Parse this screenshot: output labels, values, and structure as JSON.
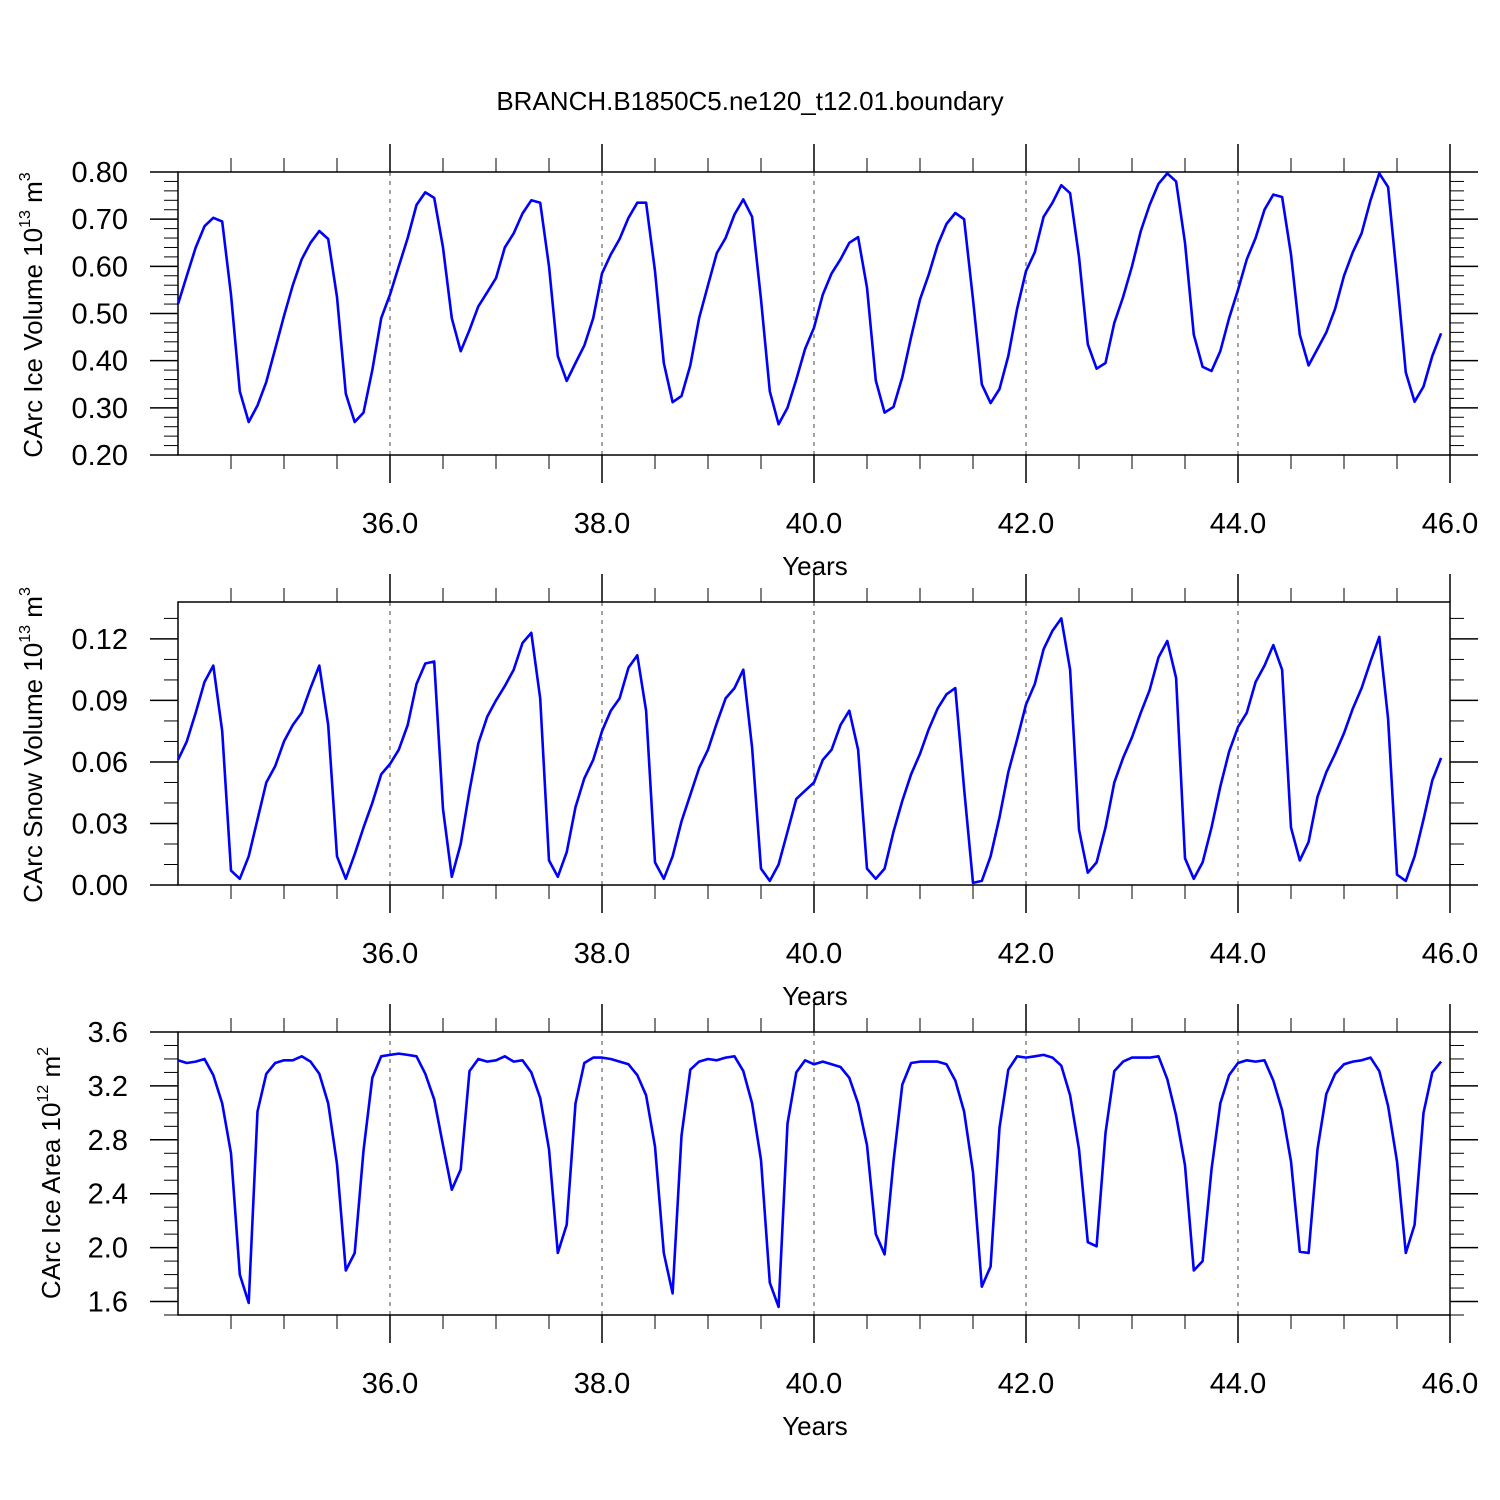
{
  "figure": {
    "title": "BRANCH.B1850C5.ne120_t12.01.boundary",
    "line_color": "#0000ff",
    "grid_color": "#666666"
  },
  "chart_data": [
    {
      "type": "line",
      "name": "ice-volume",
      "xlabel": "Years",
      "ylabel": {
        "prefix": "CArc Ice Volume 10",
        "exp": "13",
        "unit": " m",
        "unit_exp": "3"
      },
      "xlim": [
        34.0,
        46.0
      ],
      "ylim": [
        0.2,
        0.8
      ],
      "xticks": [
        36.0,
        38.0,
        40.0,
        42.0,
        44.0,
        46.0
      ],
      "xtick_labels": [
        "36.0",
        "38.0",
        "40.0",
        "42.0",
        "44.0",
        "46.0"
      ],
      "yticks": [
        0.2,
        0.3,
        0.4,
        0.5,
        0.6,
        0.7,
        0.8
      ],
      "ytick_labels": [
        "0.20",
        "0.30",
        "0.40",
        "0.50",
        "0.60",
        "0.70",
        "0.80"
      ],
      "yminor": 5,
      "grid": "vertical dashed at major x ticks",
      "x_start": 34.0,
      "x_step": 0.08333,
      "values": [
        0.52,
        0.58,
        0.64,
        0.685,
        0.703,
        0.695,
        0.54,
        0.335,
        0.27,
        0.305,
        0.355,
        0.425,
        0.495,
        0.56,
        0.615,
        0.65,
        0.675,
        0.658,
        0.535,
        0.33,
        0.27,
        0.29,
        0.38,
        0.49,
        0.54,
        0.6,
        0.66,
        0.73,
        0.757,
        0.745,
        0.64,
        0.49,
        0.42,
        0.465,
        0.515,
        0.545,
        0.575,
        0.64,
        0.67,
        0.712,
        0.74,
        0.735,
        0.6,
        0.41,
        0.357,
        0.395,
        0.432,
        0.49,
        0.585,
        0.625,
        0.658,
        0.703,
        0.735,
        0.735,
        0.59,
        0.395,
        0.312,
        0.325,
        0.39,
        0.49,
        0.56,
        0.628,
        0.66,
        0.71,
        0.742,
        0.705,
        0.53,
        0.335,
        0.265,
        0.3,
        0.36,
        0.425,
        0.47,
        0.54,
        0.585,
        0.615,
        0.65,
        0.662,
        0.555,
        0.358,
        0.29,
        0.302,
        0.365,
        0.45,
        0.53,
        0.583,
        0.645,
        0.69,
        0.713,
        0.7,
        0.53,
        0.35,
        0.31,
        0.34,
        0.41,
        0.51,
        0.59,
        0.63,
        0.705,
        0.735,
        0.772,
        0.755,
        0.62,
        0.435,
        0.383,
        0.395,
        0.48,
        0.535,
        0.6,
        0.675,
        0.73,
        0.775,
        0.797,
        0.78,
        0.65,
        0.455,
        0.387,
        0.378,
        0.42,
        0.49,
        0.55,
        0.615,
        0.66,
        0.72,
        0.752,
        0.747,
        0.625,
        0.455,
        0.39,
        0.425,
        0.46,
        0.51,
        0.58,
        0.63,
        0.67,
        0.74,
        0.797,
        0.768,
        0.575,
        0.375,
        0.313,
        0.345,
        0.41,
        0.458
      ]
    },
    {
      "type": "line",
      "name": "snow-volume",
      "xlabel": "Years",
      "ylabel": {
        "prefix": "CArc Snow Volume 10",
        "exp": "13",
        "unit": " m",
        "unit_exp": "3"
      },
      "xlim": [
        34.0,
        46.0
      ],
      "ylim": [
        0.0,
        0.138
      ],
      "xticks": [
        36.0,
        38.0,
        40.0,
        42.0,
        44.0,
        46.0
      ],
      "xtick_labels": [
        "36.0",
        "38.0",
        "40.0",
        "42.0",
        "44.0",
        "46.0"
      ],
      "yticks": [
        0.0,
        0.03,
        0.06,
        0.09,
        0.12
      ],
      "ytick_labels": [
        "0.00",
        "0.03",
        "0.06",
        "0.09",
        "0.12"
      ],
      "yminor": 3,
      "grid": "vertical dashed at major x ticks",
      "x_start": 34.0,
      "x_step": 0.08333,
      "values": [
        0.061,
        0.07,
        0.084,
        0.099,
        0.107,
        0.075,
        0.007,
        0.003,
        0.014,
        0.032,
        0.05,
        0.058,
        0.07,
        0.078,
        0.084,
        0.096,
        0.107,
        0.078,
        0.014,
        0.003,
        0.015,
        0.028,
        0.04,
        0.054,
        0.059,
        0.066,
        0.078,
        0.098,
        0.108,
        0.109,
        0.037,
        0.004,
        0.02,
        0.046,
        0.069,
        0.082,
        0.09,
        0.097,
        0.105,
        0.118,
        0.123,
        0.091,
        0.012,
        0.004,
        0.016,
        0.038,
        0.052,
        0.061,
        0.075,
        0.085,
        0.091,
        0.106,
        0.112,
        0.085,
        0.011,
        0.003,
        0.014,
        0.031,
        0.044,
        0.057,
        0.066,
        0.079,
        0.091,
        0.096,
        0.105,
        0.067,
        0.008,
        0.002,
        0.01,
        0.026,
        0.042,
        0.046,
        0.05,
        0.061,
        0.066,
        0.078,
        0.085,
        0.066,
        0.008,
        0.003,
        0.008,
        0.026,
        0.041,
        0.054,
        0.064,
        0.076,
        0.086,
        0.093,
        0.096,
        0.047,
        0.001,
        0.002,
        0.014,
        0.033,
        0.055,
        0.071,
        0.088,
        0.098,
        0.115,
        0.124,
        0.13,
        0.105,
        0.027,
        0.006,
        0.011,
        0.028,
        0.05,
        0.062,
        0.072,
        0.084,
        0.095,
        0.111,
        0.119,
        0.101,
        0.013,
        0.003,
        0.011,
        0.028,
        0.048,
        0.065,
        0.077,
        0.084,
        0.099,
        0.107,
        0.117,
        0.105,
        0.028,
        0.012,
        0.021,
        0.043,
        0.055,
        0.064,
        0.074,
        0.086,
        0.096,
        0.109,
        0.121,
        0.081,
        0.005,
        0.002,
        0.014,
        0.032,
        0.051,
        0.062
      ]
    },
    {
      "type": "line",
      "name": "ice-area",
      "xlabel": "Years",
      "ylabel": {
        "prefix": "CArc Ice Area 10",
        "exp": "12",
        "unit": " m",
        "unit_exp": "2"
      },
      "xlim": [
        34.0,
        46.0
      ],
      "ylim": [
        1.5,
        3.6
      ],
      "xticks": [
        36.0,
        38.0,
        40.0,
        42.0,
        44.0,
        46.0
      ],
      "xtick_labels": [
        "36.0",
        "38.0",
        "40.0",
        "42.0",
        "44.0",
        "46.0"
      ],
      "yticks": [
        1.6,
        2.0,
        2.4,
        2.8,
        3.2,
        3.6
      ],
      "ytick_labels": [
        "1.6",
        "2.0",
        "2.4",
        "2.8",
        "3.2",
        "3.6"
      ],
      "yminor": 4,
      "grid": "vertical dashed at major x ticks",
      "x_start": 34.0,
      "x_step": 0.08333,
      "values": [
        3.39,
        3.37,
        3.38,
        3.4,
        3.28,
        3.07,
        2.7,
        1.8,
        1.59,
        3.01,
        3.29,
        3.37,
        3.39,
        3.39,
        3.42,
        3.38,
        3.29,
        3.07,
        2.62,
        1.83,
        1.96,
        2.72,
        3.26,
        3.42,
        3.43,
        3.44,
        3.43,
        3.42,
        3.29,
        3.1,
        2.76,
        2.43,
        2.58,
        3.31,
        3.4,
        3.38,
        3.39,
        3.42,
        3.38,
        3.39,
        3.3,
        3.11,
        2.73,
        1.96,
        2.17,
        3.07,
        3.37,
        3.41,
        3.41,
        3.4,
        3.38,
        3.36,
        3.28,
        3.13,
        2.75,
        1.96,
        1.66,
        2.83,
        3.32,
        3.38,
        3.4,
        3.39,
        3.41,
        3.42,
        3.31,
        3.07,
        2.65,
        1.74,
        1.56,
        2.92,
        3.3,
        3.39,
        3.36,
        3.38,
        3.36,
        3.34,
        3.26,
        3.07,
        2.76,
        2.1,
        1.95,
        2.64,
        3.21,
        3.37,
        3.38,
        3.38,
        3.38,
        3.36,
        3.24,
        3.01,
        2.56,
        1.71,
        1.86,
        2.89,
        3.32,
        3.42,
        3.41,
        3.42,
        3.43,
        3.41,
        3.35,
        3.13,
        2.73,
        2.04,
        2.01,
        2.85,
        3.31,
        3.38,
        3.41,
        3.41,
        3.41,
        3.42,
        3.25,
        2.98,
        2.61,
        1.83,
        1.9,
        2.58,
        3.07,
        3.28,
        3.37,
        3.39,
        3.38,
        3.39,
        3.24,
        3.02,
        2.64,
        1.97,
        1.96,
        2.73,
        3.14,
        3.29,
        3.36,
        3.38,
        3.39,
        3.41,
        3.31,
        3.05,
        2.64,
        1.96,
        2.17,
        3.0,
        3.3,
        3.38
      ]
    }
  ]
}
